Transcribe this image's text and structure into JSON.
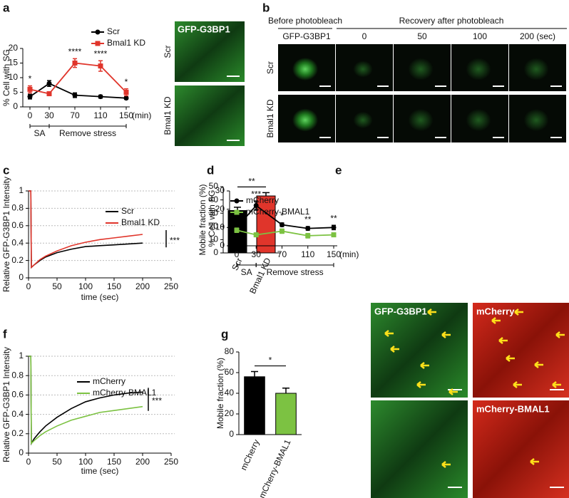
{
  "panel_labels": [
    "a",
    "b",
    "c",
    "d",
    "e",
    "f",
    "g"
  ],
  "panel_a_images": {
    "title": "GFP-G3BP1",
    "rows": [
      "Scr",
      "Bmal1 KD"
    ]
  },
  "panel_b": {
    "header_left": "Before photobleach",
    "header_right": "Recovery after photobleach",
    "columns": [
      "GFP-G3BP1",
      "0",
      "50",
      "100",
      "200 (sec)"
    ],
    "rows": [
      "Scr",
      "Bmal1 KD"
    ]
  },
  "panel_e_images": {
    "labels": [
      "GFP-G3BP1",
      "mCherry",
      "mCherry-BMAL1"
    ]
  },
  "chart_data": [
    {
      "type": "line",
      "ylabel": "% Cell with SG",
      "x": [
        0,
        30,
        70,
        110,
        150
      ],
      "xlim": [
        0,
        150
      ],
      "xticks": [
        0,
        30,
        70,
        110,
        150
      ],
      "xunit": "(min)",
      "ylim": [
        0,
        20
      ],
      "yticks": [
        0,
        5,
        10,
        15,
        20
      ],
      "series": [
        {
          "name": "Scr",
          "color": "#000000",
          "marker": "circle",
          "values": [
            3.5,
            8,
            4,
            3.5,
            3
          ],
          "errors": [
            0.8,
            1,
            0.8,
            0.5,
            0.4
          ]
        },
        {
          "name": "Bmal1 KD",
          "color": "#e0352b",
          "marker": "square",
          "values": [
            6,
            4.5,
            15,
            14,
            5
          ],
          "errors": [
            1.2,
            0.5,
            1.5,
            1.8,
            1.2
          ]
        }
      ],
      "annotations": [
        {
          "x": 0,
          "text": "*"
        },
        {
          "x": 70,
          "text": "****"
        },
        {
          "x": 110,
          "text": "****"
        },
        {
          "x": 150,
          "text": "*"
        }
      ],
      "phases": [
        {
          "label": "SA",
          "from": 0,
          "to": 30
        },
        {
          "label": "Remove stress",
          "from": 30,
          "to": 150
        }
      ]
    },
    {
      "type": "line",
      "xlabel": "time (sec)",
      "ylabel": "Relative GFP-G3BP1 Intensity",
      "x": [
        0,
        4,
        5,
        10,
        20,
        30,
        50,
        75,
        100,
        125,
        150,
        175,
        200
      ],
      "xlim": [
        0,
        250
      ],
      "xticks": [
        0,
        50,
        100,
        150,
        200,
        250
      ],
      "ylim": [
        0,
        1
      ],
      "yticks": [
        0,
        0.2,
        0.4,
        0.6,
        0.8,
        1
      ],
      "grid": true,
      "series": [
        {
          "name": "Scr",
          "color": "#000000",
          "values": [
            1,
            1,
            0.12,
            0.15,
            0.2,
            0.24,
            0.29,
            0.33,
            0.36,
            0.37,
            0.38,
            0.39,
            0.4
          ]
        },
        {
          "name": "Bmal1 KD",
          "color": "#e0352b",
          "values": [
            1,
            1,
            0.12,
            0.15,
            0.21,
            0.25,
            0.31,
            0.37,
            0.41,
            0.44,
            0.46,
            0.48,
            0.5
          ]
        }
      ],
      "significance": "***"
    },
    {
      "type": "bar",
      "ylabel": "Mobile fraction (%)",
      "categories": [
        "Scr",
        "Bmal1 KD"
      ],
      "values": [
        32,
        43
      ],
      "errors": [
        2.5,
        2.5
      ],
      "colors": [
        "#000000",
        "#e0352b"
      ],
      "ylim": [
        0,
        50
      ],
      "yticks": [
        0,
        10,
        20,
        30,
        40,
        50
      ],
      "significance": "**"
    },
    {
      "type": "line",
      "ylabel": "% Cell with SG",
      "x": [
        0,
        30,
        70,
        110,
        150
      ],
      "xlim": [
        0,
        150
      ],
      "xticks": [
        0,
        30,
        70,
        110,
        150
      ],
      "xunit": "(min)",
      "ylim": [
        0,
        30
      ],
      "yticks": [
        0,
        10,
        20,
        30
      ],
      "series": [
        {
          "name": "mCherry",
          "color": "#000000",
          "marker": "circle",
          "values": [
            10,
            22,
            11.5,
            9.5,
            10
          ],
          "errors": [
            1,
            2.5,
            1,
            1,
            1.2
          ]
        },
        {
          "name": "mCherry-BMAL1",
          "color": "#7cc242",
          "marker": "square",
          "values": [
            8.5,
            6,
            8,
            5.5,
            6
          ],
          "errors": [
            1.2,
            1,
            1.2,
            1.2,
            1
          ]
        }
      ],
      "annotations": [
        {
          "x": 30,
          "text": "***"
        },
        {
          "x": 70,
          "text": "*"
        },
        {
          "x": 110,
          "text": "**"
        },
        {
          "x": 150,
          "text": "**"
        }
      ],
      "phases": [
        {
          "label": "SA",
          "from": 0,
          "to": 30
        },
        {
          "label": "Remove stress",
          "from": 30,
          "to": 150
        }
      ]
    },
    {
      "type": "line",
      "xlabel": "time (sec)",
      "ylabel": "Relative GFP-G3BP1 Intensity",
      "x": [
        0,
        4,
        5,
        10,
        20,
        30,
        50,
        75,
        100,
        125,
        150,
        175,
        200
      ],
      "xlim": [
        0,
        250
      ],
      "xticks": [
        0,
        50,
        100,
        150,
        200,
        250
      ],
      "ylim": [
        0,
        1
      ],
      "yticks": [
        0,
        0.2,
        0.4,
        0.6,
        0.8,
        1
      ],
      "grid": true,
      "series": [
        {
          "name": "mCherry",
          "color": "#000000",
          "values": [
            1,
            1,
            0.1,
            0.15,
            0.22,
            0.28,
            0.37,
            0.46,
            0.53,
            0.57,
            0.6,
            0.62,
            0.63
          ]
        },
        {
          "name": "mCherry-BMAL1",
          "color": "#7cc242",
          "values": [
            1,
            1,
            0.1,
            0.13,
            0.18,
            0.22,
            0.28,
            0.34,
            0.38,
            0.42,
            0.44,
            0.46,
            0.48
          ]
        }
      ],
      "significance": "***"
    },
    {
      "type": "bar",
      "ylabel": "Mobile fraction (%)",
      "categories": [
        "mCherry",
        "mCherry-BMAL1"
      ],
      "values": [
        56,
        40
      ],
      "errors": [
        5,
        5
      ],
      "colors": [
        "#000000",
        "#7cc242"
      ],
      "ylim": [
        0,
        80
      ],
      "yticks": [
        0,
        20,
        40,
        60,
        80
      ],
      "significance": "*"
    }
  ]
}
